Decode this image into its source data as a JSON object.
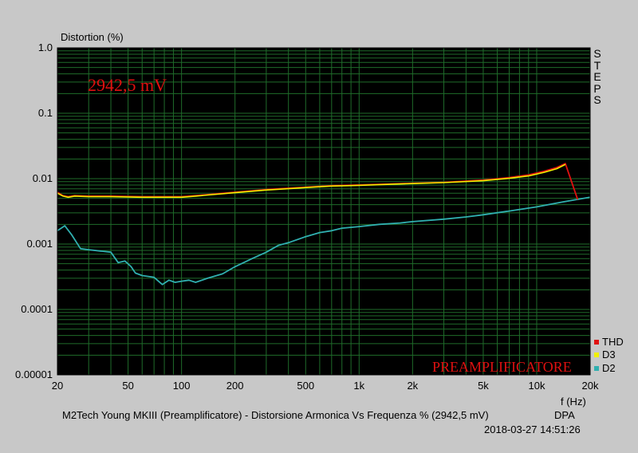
{
  "chart_data": {
    "type": "line",
    "ylabel": "Distortion (%)",
    "xlabel": "f (Hz)",
    "title": "M2Tech Young MKIII (Preamplificatore) - Distorsione Armonica Vs Frequenza % (2942,5 mV)",
    "title_suffix": "DPA",
    "timestamp": "2018-03-27 14:51:26",
    "side_label": "STEPS",
    "annotation_level": "2942,5 mV",
    "watermark": "PREAMPLIFICATORE",
    "x_scale": "log",
    "y_scale": "log",
    "xlim": [
      20,
      20000
    ],
    "ylim": [
      1e-05,
      1.0
    ],
    "grid": true,
    "legend_position": "bottom-right",
    "x_ticks": [
      {
        "v": 20,
        "label": "20"
      },
      {
        "v": 50,
        "label": "50"
      },
      {
        "v": 100,
        "label": "100"
      },
      {
        "v": 200,
        "label": "200"
      },
      {
        "v": 500,
        "label": "500"
      },
      {
        "v": 1000,
        "label": "1k"
      },
      {
        "v": 2000,
        "label": "2k"
      },
      {
        "v": 5000,
        "label": "5k"
      },
      {
        "v": 10000,
        "label": "10k"
      },
      {
        "v": 20000,
        "label": "20k"
      }
    ],
    "y_ticks": [
      {
        "v": 1.0,
        "label": "1.0"
      },
      {
        "v": 0.1,
        "label": "0.1"
      },
      {
        "v": 0.01,
        "label": "0.01"
      },
      {
        "v": 0.001,
        "label": "0.001"
      },
      {
        "v": 0.0001,
        "label": "0.0001"
      },
      {
        "v": 1e-05,
        "label": "0.00001"
      }
    ],
    "series": [
      {
        "name": "THD",
        "color": "#e01010",
        "points": [
          [
            20,
            0.0062
          ],
          [
            21.5,
            0.0055
          ],
          [
            23,
            0.0053
          ],
          [
            25,
            0.0055
          ],
          [
            30,
            0.0054
          ],
          [
            40,
            0.0054
          ],
          [
            60,
            0.0053
          ],
          [
            80,
            0.0053
          ],
          [
            100,
            0.0053
          ],
          [
            120,
            0.0055
          ],
          [
            150,
            0.0058
          ],
          [
            200,
            0.0062
          ],
          [
            300,
            0.0068
          ],
          [
            500,
            0.0074
          ],
          [
            700,
            0.0078
          ],
          [
            1000,
            0.008
          ],
          [
            1500,
            0.0083
          ],
          [
            2000,
            0.0085
          ],
          [
            3000,
            0.0088
          ],
          [
            5000,
            0.0095
          ],
          [
            7000,
            0.0104
          ],
          [
            9000,
            0.0114
          ],
          [
            11000,
            0.013
          ],
          [
            13000,
            0.0148
          ],
          [
            14500,
            0.017
          ],
          [
            17000,
            0.0048
          ]
        ]
      },
      {
        "name": "D3",
        "color": "#f0f000",
        "points": [
          [
            20,
            0.006
          ],
          [
            21.5,
            0.0054
          ],
          [
            23,
            0.0052
          ],
          [
            25,
            0.0054
          ],
          [
            30,
            0.0053
          ],
          [
            40,
            0.0053
          ],
          [
            60,
            0.0052
          ],
          [
            80,
            0.0052
          ],
          [
            100,
            0.0052
          ],
          [
            120,
            0.0054
          ],
          [
            150,
            0.0057
          ],
          [
            200,
            0.0061
          ],
          [
            300,
            0.0067
          ],
          [
            500,
            0.0073
          ],
          [
            700,
            0.0077
          ],
          [
            1000,
            0.0079
          ],
          [
            1500,
            0.0082
          ],
          [
            2000,
            0.0084
          ],
          [
            3000,
            0.0087
          ],
          [
            5000,
            0.0093
          ],
          [
            7000,
            0.0101
          ],
          [
            9000,
            0.011
          ],
          [
            11000,
            0.0125
          ],
          [
            13000,
            0.0142
          ],
          [
            14500,
            0.0165
          ]
        ]
      },
      {
        "name": "D2",
        "color": "#30b0b0",
        "points": [
          [
            20,
            0.0016
          ],
          [
            22,
            0.0019
          ],
          [
            24,
            0.0014
          ],
          [
            27,
            0.00085
          ],
          [
            30,
            0.00082
          ],
          [
            35,
            0.00078
          ],
          [
            40,
            0.00075
          ],
          [
            44,
            0.00052
          ],
          [
            48,
            0.00055
          ],
          [
            52,
            0.00045
          ],
          [
            55,
            0.00036
          ],
          [
            60,
            0.00033
          ],
          [
            65,
            0.00032
          ],
          [
            70,
            0.00031
          ],
          [
            78,
            0.00024
          ],
          [
            85,
            0.00028
          ],
          [
            92,
            0.00026
          ],
          [
            100,
            0.00027
          ],
          [
            110,
            0.00028
          ],
          [
            120,
            0.00026
          ],
          [
            140,
            0.0003
          ],
          [
            170,
            0.00035
          ],
          [
            200,
            0.00045
          ],
          [
            250,
            0.0006
          ],
          [
            300,
            0.00075
          ],
          [
            350,
            0.00095
          ],
          [
            400,
            0.00105
          ],
          [
            500,
            0.0013
          ],
          [
            600,
            0.0015
          ],
          [
            700,
            0.0016
          ],
          [
            800,
            0.00175
          ],
          [
            1000,
            0.00185
          ],
          [
            1300,
            0.002
          ],
          [
            1700,
            0.0021
          ],
          [
            2000,
            0.0022
          ],
          [
            3000,
            0.0024
          ],
          [
            4000,
            0.0026
          ],
          [
            5000,
            0.0028
          ],
          [
            7000,
            0.0032
          ],
          [
            10000,
            0.0037
          ],
          [
            14000,
            0.0044
          ],
          [
            20000,
            0.0052
          ]
        ]
      }
    ]
  }
}
